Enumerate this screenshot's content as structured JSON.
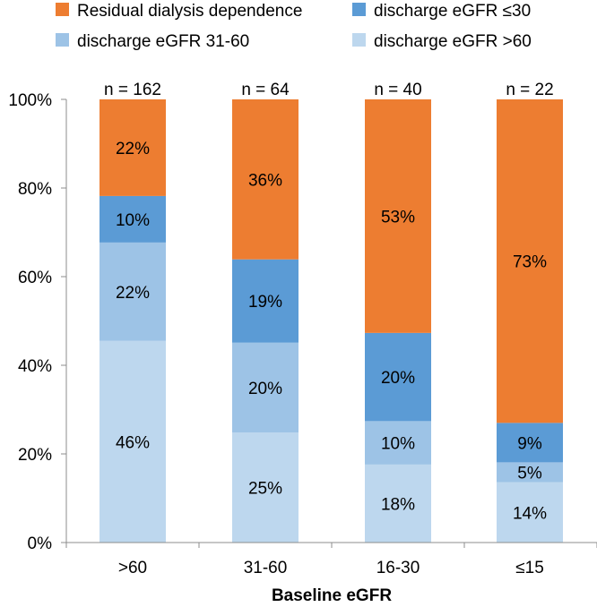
{
  "chart_data": {
    "type": "stacked_bar",
    "title": "",
    "xlabel": "Baseline eGFR",
    "ylabel": "",
    "ylim": [
      0,
      100
    ],
    "yticks": [
      "0%",
      "20%",
      "40%",
      "60%",
      "80%",
      "100%"
    ],
    "ytick_values": [
      0,
      20,
      40,
      60,
      80,
      100
    ],
    "categories": [
      ">60",
      "31-60",
      "16-30",
      "≤15"
    ],
    "n_labels": [
      "n = 162",
      "n = 64",
      "n = 40",
      "n = 22"
    ],
    "series": [
      {
        "name": "discharge eGFR >60",
        "color": "#bdd7ee",
        "values": [
          45.5,
          24.8,
          17.6,
          13.6
        ],
        "labels": [
          "46%",
          "25%",
          "18%",
          "14%"
        ]
      },
      {
        "name": "discharge eGFR 31-60",
        "color": "#9dc3e6",
        "values": [
          22.2,
          20.3,
          9.8,
          4.5
        ],
        "labels": [
          "22%",
          "20%",
          "10%",
          "5%"
        ]
      },
      {
        "name": "discharge eGFR ≤30",
        "color": "#5b9bd5",
        "values": [
          10.5,
          18.8,
          19.9,
          8.9
        ],
        "labels": [
          "10%",
          "19%",
          "20%",
          "9%"
        ]
      },
      {
        "name": "Residual dialysis dependence",
        "color": "#ed7d31",
        "values": [
          21.8,
          36.1,
          52.7,
          73.0
        ],
        "labels": [
          "22%",
          "36%",
          "53%",
          "73%"
        ]
      }
    ],
    "legend": {
      "placement": "top",
      "order": [
        "Residual dialysis dependence",
        "discharge eGFR ≤30",
        "discharge eGFR 31-60",
        "discharge eGFR >60"
      ]
    },
    "grid": false
  }
}
